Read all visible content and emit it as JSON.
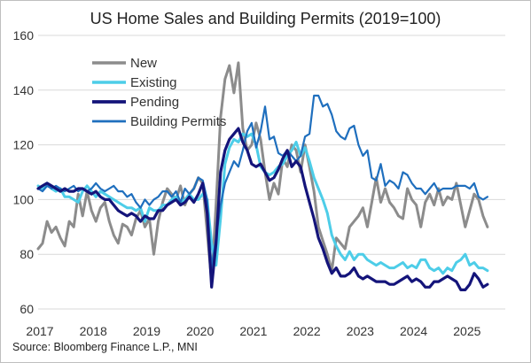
{
  "chart_data": {
    "type": "line",
    "title": "US Home Sales and Building Permits (2019=100)",
    "source": "Source: Bloomberg Finance L.P., MNI",
    "xlabel": "",
    "ylabel": "",
    "ylim": [
      60,
      160
    ],
    "yticks": [
      60,
      80,
      100,
      120,
      140,
      160
    ],
    "xlim": [
      2017.0,
      2025.75
    ],
    "xticks": [
      "2017",
      "2018",
      "2019",
      "2020",
      "2021",
      "2022",
      "2023",
      "2024",
      "2025"
    ],
    "grid": true,
    "legend_position": "top-left",
    "x": [
      2017.0,
      2017.083,
      2017.167,
      2017.25,
      2017.333,
      2017.417,
      2017.5,
      2017.583,
      2017.667,
      2017.75,
      2017.833,
      2017.917,
      2018.0,
      2018.083,
      2018.167,
      2018.25,
      2018.333,
      2018.417,
      2018.5,
      2018.583,
      2018.667,
      2018.75,
      2018.833,
      2018.917,
      2019.0,
      2019.083,
      2019.167,
      2019.25,
      2019.333,
      2019.417,
      2019.5,
      2019.583,
      2019.667,
      2019.75,
      2019.833,
      2019.917,
      2020.0,
      2020.083,
      2020.167,
      2020.25,
      2020.333,
      2020.417,
      2020.5,
      2020.583,
      2020.667,
      2020.75,
      2020.833,
      2020.917,
      2021.0,
      2021.083,
      2021.167,
      2021.25,
      2021.333,
      2021.417,
      2021.5,
      2021.583,
      2021.667,
      2021.75,
      2021.833,
      2021.917,
      2022.0,
      2022.083,
      2022.167,
      2022.25,
      2022.333,
      2022.417,
      2022.5,
      2022.583,
      2022.667,
      2022.75,
      2022.833,
      2022.917,
      2023.0,
      2023.083,
      2023.167,
      2023.25,
      2023.333,
      2023.417,
      2023.5,
      2023.583,
      2023.667,
      2023.75,
      2023.833,
      2023.917,
      2024.0,
      2024.083,
      2024.167,
      2024.25,
      2024.333,
      2024.417,
      2024.5,
      2024.583,
      2024.667,
      2024.75,
      2024.833,
      2024.917,
      2025.0,
      2025.083,
      2025.167,
      2025.25,
      2025.333,
      2025.417
    ],
    "series": [
      {
        "name": "New",
        "color": "#8c8c8c",
        "width": 3,
        "values": [
          82,
          84,
          92,
          88,
          90,
          86,
          83,
          92,
          90,
          102,
          94,
          103,
          96,
          92,
          97,
          99,
          92,
          87,
          84,
          91,
          90,
          87,
          93,
          96,
          90,
          93,
          80,
          92,
          99,
          104,
          102,
          100,
          105,
          98,
          102,
          104,
          108,
          106,
          88,
          70,
          98,
          130,
          144,
          149,
          139,
          150,
          126,
          118,
          120,
          128,
          122,
          110,
          100,
          106,
          102,
          115,
          112,
          120,
          118,
          110,
          120,
          112,
          103,
          90,
          85,
          80,
          74,
          86,
          84,
          82,
          90,
          92,
          94,
          97,
          90,
          99,
          108,
          99,
          104,
          99,
          97,
          94,
          93,
          104,
          100,
          98,
          90,
          99,
          102,
          98,
          104,
          98,
          101,
          100,
          106,
          98,
          90,
          96,
          102,
          100,
          94,
          90
        ]
      },
      {
        "name": "Existing",
        "color": "#4dcde8",
        "width": 3,
        "values": [
          105,
          104,
          106,
          104,
          103,
          104,
          101,
          101,
          100,
          99,
          103,
          105,
          103,
          101,
          103,
          102,
          101,
          100,
          99,
          98,
          97,
          97,
          96,
          97,
          92,
          97,
          96,
          96,
          98,
          98,
          100,
          101,
          99,
          100,
          102,
          100,
          100,
          102,
          100,
          84,
          76,
          93,
          113,
          119,
          122,
          121,
          124,
          123,
          124,
          120,
          112,
          110,
          109,
          110,
          112,
          113,
          116,
          118,
          121,
          116,
          119,
          114,
          108,
          104,
          100,
          95,
          87,
          83,
          80,
          78,
          81,
          78,
          80,
          80,
          78,
          77,
          76,
          77,
          76,
          75,
          75,
          76,
          77,
          75,
          76,
          75,
          78,
          78,
          75,
          74,
          75,
          73,
          75,
          74,
          77,
          78,
          80,
          76,
          77,
          75,
          75,
          74
        ]
      },
      {
        "name": "Pending",
        "color": "#14147a",
        "width": 3.2,
        "values": [
          104,
          105,
          106,
          105,
          104,
          103,
          104,
          103,
          103,
          104,
          104,
          103,
          102,
          103,
          101,
          100,
          100,
          98,
          96,
          95,
          94,
          95,
          94,
          92,
          94,
          93,
          93,
          96,
          96,
          98,
          99,
          100,
          98,
          99,
          101,
          99,
          102,
          106,
          95,
          68,
          84,
          110,
          118,
          122,
          124,
          126,
          121,
          118,
          113,
          112,
          113,
          110,
          107,
          108,
          111,
          115,
          118,
          112,
          114,
          112,
          105,
          99,
          93,
          86,
          82,
          77,
          73,
          75,
          72,
          72,
          73,
          75,
          72,
          71,
          72,
          71,
          70,
          70,
          70,
          69,
          69,
          70,
          71,
          72,
          70,
          71,
          70,
          68,
          68,
          70,
          70,
          71,
          72,
          71,
          70,
          67,
          67,
          69,
          73,
          71,
          68,
          69
        ]
      },
      {
        "name": "Building Permits",
        "color": "#1f6fbe",
        "width": 2.2,
        "values": [
          104,
          103,
          105,
          104,
          105,
          104,
          103,
          104,
          105,
          103,
          104,
          103,
          104,
          106,
          104,
          103,
          104,
          105,
          103,
          103,
          101,
          102,
          99,
          97,
          100,
          98,
          100,
          101,
          103,
          103,
          101,
          103,
          99,
          104,
          102,
          104,
          108,
          107,
          100,
          75,
          86,
          98,
          106,
          110,
          114,
          112,
          118,
          125,
          128,
          119,
          125,
          134,
          122,
          123,
          117,
          116,
          118,
          116,
          114,
          116,
          123,
          124,
          138,
          138,
          134,
          135,
          131,
          125,
          123,
          122,
          126,
          127,
          120,
          116,
          118,
          108,
          107,
          113,
          105,
          107,
          106,
          104,
          110,
          109,
          106,
          104,
          104,
          102,
          104,
          106,
          103,
          104,
          104,
          104,
          105,
          105,
          105,
          104,
          106,
          101,
          100,
          101
        ]
      }
    ]
  }
}
